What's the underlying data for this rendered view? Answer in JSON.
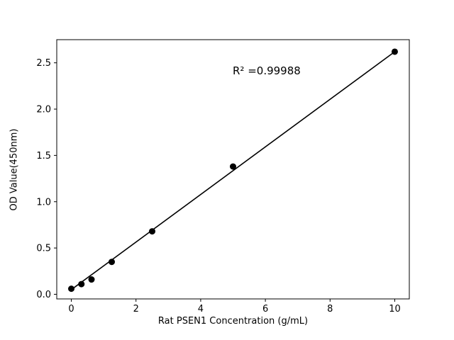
{
  "chart_data": {
    "type": "scatter",
    "title": "",
    "xlabel": "Rat PSEN1 Concentration (g/mL)",
    "ylabel": "OD Value(450nm)",
    "annotation": "R² =0.99988",
    "x": [
      0,
      0.3125,
      0.625,
      1.25,
      2.5,
      5,
      10
    ],
    "y": [
      0.06,
      0.11,
      0.16,
      0.35,
      0.68,
      1.38,
      2.62
    ],
    "fit_line": {
      "x": [
        0,
        10
      ],
      "y": [
        0.05,
        2.62
      ]
    },
    "xlim": [
      -0.45,
      10.45
    ],
    "ylim": [
      -0.05,
      2.75
    ],
    "xticks": [
      0,
      2,
      4,
      6,
      8,
      10
    ],
    "xtick_labels": [
      "0",
      "2",
      "4",
      "6",
      "8",
      "10"
    ],
    "yticks": [
      0.0,
      0.5,
      1.0,
      1.5,
      2.0,
      2.5
    ],
    "ytick_labels": [
      "0.0",
      "0.5",
      "1.0",
      "1.5",
      "2.0",
      "2.5"
    ],
    "grid": false,
    "legend": null,
    "marker_color": "#000000",
    "line_color": "#000000",
    "axis_color": "#000000",
    "background_color": "#ffffff"
  }
}
